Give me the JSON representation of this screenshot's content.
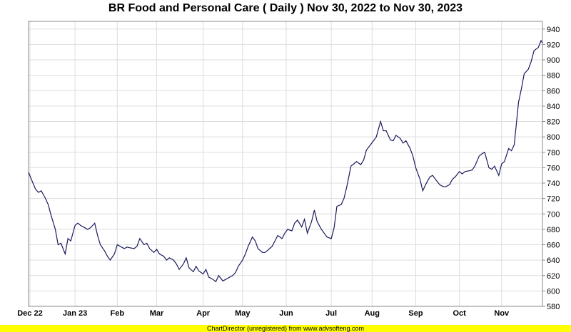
{
  "chart_data": {
    "type": "line",
    "title": "BR Food and Personal Care ( Daily ) Nov 30, 2022 to Nov 30, 2023",
    "xlabel": "",
    "ylabel": "",
    "ylim": [
      580,
      950
    ],
    "y_ticks": [
      580,
      600,
      620,
      640,
      660,
      680,
      700,
      720,
      740,
      760,
      780,
      800,
      820,
      840,
      860,
      880,
      900,
      920,
      940
    ],
    "x_range": [
      "2022-11-30",
      "2023-11-30"
    ],
    "x_ticks": [
      {
        "label": "Dec 22",
        "date": "2022-12-01"
      },
      {
        "label": "Jan 23",
        "date": "2023-01-02"
      },
      {
        "label": "Feb",
        "date": "2023-02-01"
      },
      {
        "label": "Mar",
        "date": "2023-03-01"
      },
      {
        "label": "Apr",
        "date": "2023-04-03"
      },
      {
        "label": "May",
        "date": "2023-05-01"
      },
      {
        "label": "Jun",
        "date": "2023-06-01"
      },
      {
        "label": "Jul",
        "date": "2023-07-03"
      },
      {
        "label": "Aug",
        "date": "2023-08-01"
      },
      {
        "label": "Sep",
        "date": "2023-09-01"
      },
      {
        "label": "Oct",
        "date": "2023-10-02"
      },
      {
        "label": "Nov",
        "date": "2023-11-01"
      }
    ],
    "grid": true,
    "line_color": "#1a1a5e",
    "series": [
      {
        "values": [
          [
            "2022-11-30",
            754
          ],
          [
            "2022-12-02",
            745
          ],
          [
            "2022-12-05",
            732
          ],
          [
            "2022-12-07",
            728
          ],
          [
            "2022-12-09",
            730
          ],
          [
            "2022-12-12",
            720
          ],
          [
            "2022-12-14",
            712
          ],
          [
            "2022-12-16",
            698
          ],
          [
            "2022-12-19",
            680
          ],
          [
            "2022-12-21",
            660
          ],
          [
            "2022-12-23",
            662
          ],
          [
            "2022-12-26",
            648
          ],
          [
            "2022-12-28",
            668
          ],
          [
            "2022-12-30",
            665
          ],
          [
            "2023-01-02",
            685
          ],
          [
            "2023-01-04",
            688
          ],
          [
            "2023-01-06",
            685
          ],
          [
            "2023-01-09",
            682
          ],
          [
            "2023-01-11",
            680
          ],
          [
            "2023-01-13",
            682
          ],
          [
            "2023-01-16",
            688
          ],
          [
            "2023-01-18",
            672
          ],
          [
            "2023-01-20",
            660
          ],
          [
            "2023-01-23",
            652
          ],
          [
            "2023-01-25",
            645
          ],
          [
            "2023-01-27",
            640
          ],
          [
            "2023-01-30",
            648
          ],
          [
            "2023-02-01",
            660
          ],
          [
            "2023-02-03",
            658
          ],
          [
            "2023-02-06",
            655
          ],
          [
            "2023-02-08",
            657
          ],
          [
            "2023-02-10",
            656
          ],
          [
            "2023-02-13",
            655
          ],
          [
            "2023-02-15",
            658
          ],
          [
            "2023-02-17",
            668
          ],
          [
            "2023-02-20",
            660
          ],
          [
            "2023-02-22",
            662
          ],
          [
            "2023-02-24",
            655
          ],
          [
            "2023-02-27",
            650
          ],
          [
            "2023-03-01",
            654
          ],
          [
            "2023-03-03",
            648
          ],
          [
            "2023-03-06",
            645
          ],
          [
            "2023-03-08",
            640
          ],
          [
            "2023-03-10",
            643
          ],
          [
            "2023-03-13",
            640
          ],
          [
            "2023-03-15",
            635
          ],
          [
            "2023-03-17",
            628
          ],
          [
            "2023-03-20",
            635
          ],
          [
            "2023-03-22",
            643
          ],
          [
            "2023-03-24",
            630
          ],
          [
            "2023-03-27",
            625
          ],
          [
            "2023-03-29",
            632
          ],
          [
            "2023-03-31",
            626
          ],
          [
            "2023-04-03",
            622
          ],
          [
            "2023-04-05",
            628
          ],
          [
            "2023-04-07",
            618
          ],
          [
            "2023-04-10",
            615
          ],
          [
            "2023-04-12",
            612
          ],
          [
            "2023-04-14",
            620
          ],
          [
            "2023-04-17",
            613
          ],
          [
            "2023-04-19",
            615
          ],
          [
            "2023-04-21",
            617
          ],
          [
            "2023-04-24",
            620
          ],
          [
            "2023-04-26",
            624
          ],
          [
            "2023-04-28",
            632
          ],
          [
            "2023-05-01",
            640
          ],
          [
            "2023-05-03",
            648
          ],
          [
            "2023-05-05",
            658
          ],
          [
            "2023-05-08",
            670
          ],
          [
            "2023-05-10",
            665
          ],
          [
            "2023-05-12",
            655
          ],
          [
            "2023-05-15",
            650
          ],
          [
            "2023-05-17",
            650
          ],
          [
            "2023-05-19",
            653
          ],
          [
            "2023-05-22",
            658
          ],
          [
            "2023-05-24",
            665
          ],
          [
            "2023-05-26",
            672
          ],
          [
            "2023-05-29",
            668
          ],
          [
            "2023-05-31",
            675
          ],
          [
            "2023-06-02",
            680
          ],
          [
            "2023-06-05",
            678
          ],
          [
            "2023-06-07",
            688
          ],
          [
            "2023-06-09",
            692
          ],
          [
            "2023-06-12",
            683
          ],
          [
            "2023-06-14",
            693
          ],
          [
            "2023-06-16",
            675
          ],
          [
            "2023-06-19",
            690
          ],
          [
            "2023-06-21",
            705
          ],
          [
            "2023-06-23",
            690
          ],
          [
            "2023-06-26",
            680
          ],
          [
            "2023-06-28",
            675
          ],
          [
            "2023-06-30",
            670
          ],
          [
            "2023-07-03",
            668
          ],
          [
            "2023-07-05",
            682
          ],
          [
            "2023-07-07",
            710
          ],
          [
            "2023-07-10",
            712
          ],
          [
            "2023-07-12",
            720
          ],
          [
            "2023-07-14",
            735
          ],
          [
            "2023-07-17",
            762
          ],
          [
            "2023-07-19",
            765
          ],
          [
            "2023-07-21",
            768
          ],
          [
            "2023-07-24",
            764
          ],
          [
            "2023-07-26",
            770
          ],
          [
            "2023-07-28",
            783
          ],
          [
            "2023-07-31",
            790
          ],
          [
            "2023-08-02",
            795
          ],
          [
            "2023-08-04",
            800
          ],
          [
            "2023-08-07",
            820
          ],
          [
            "2023-08-09",
            808
          ],
          [
            "2023-08-11",
            808
          ],
          [
            "2023-08-14",
            796
          ],
          [
            "2023-08-16",
            795
          ],
          [
            "2023-08-18",
            802
          ],
          [
            "2023-08-21",
            798
          ],
          [
            "2023-08-23",
            792
          ],
          [
            "2023-08-25",
            795
          ],
          [
            "2023-08-28",
            785
          ],
          [
            "2023-08-30",
            775
          ],
          [
            "2023-09-01",
            760
          ],
          [
            "2023-09-04",
            745
          ],
          [
            "2023-09-06",
            730
          ],
          [
            "2023-09-08",
            738
          ],
          [
            "2023-09-11",
            748
          ],
          [
            "2023-09-13",
            750
          ],
          [
            "2023-09-15",
            745
          ],
          [
            "2023-09-18",
            738
          ],
          [
            "2023-09-20",
            736
          ],
          [
            "2023-09-22",
            735
          ],
          [
            "2023-09-25",
            738
          ],
          [
            "2023-09-27",
            745
          ],
          [
            "2023-09-29",
            748
          ],
          [
            "2023-10-02",
            755
          ],
          [
            "2023-10-04",
            752
          ],
          [
            "2023-10-06",
            755
          ],
          [
            "2023-10-09",
            756
          ],
          [
            "2023-10-11",
            757
          ],
          [
            "2023-10-13",
            762
          ],
          [
            "2023-10-16",
            775
          ],
          [
            "2023-10-18",
            778
          ],
          [
            "2023-10-20",
            780
          ],
          [
            "2023-10-23",
            760
          ],
          [
            "2023-10-25",
            758
          ],
          [
            "2023-10-27",
            762
          ],
          [
            "2023-10-30",
            750
          ],
          [
            "2023-11-01",
            765
          ],
          [
            "2023-11-03",
            768
          ],
          [
            "2023-11-06",
            785
          ],
          [
            "2023-11-08",
            782
          ],
          [
            "2023-11-10",
            790
          ],
          [
            "2023-11-13",
            845
          ],
          [
            "2023-11-15",
            862
          ],
          [
            "2023-11-17",
            882
          ],
          [
            "2023-11-20",
            888
          ],
          [
            "2023-11-22",
            898
          ],
          [
            "2023-11-24",
            912
          ],
          [
            "2023-11-27",
            916
          ],
          [
            "2023-11-29",
            925
          ],
          [
            "2023-11-30",
            922
          ]
        ]
      }
    ]
  },
  "footer": {
    "text": "ChartDirector (unregistered) from www.advsofteng.com"
  }
}
